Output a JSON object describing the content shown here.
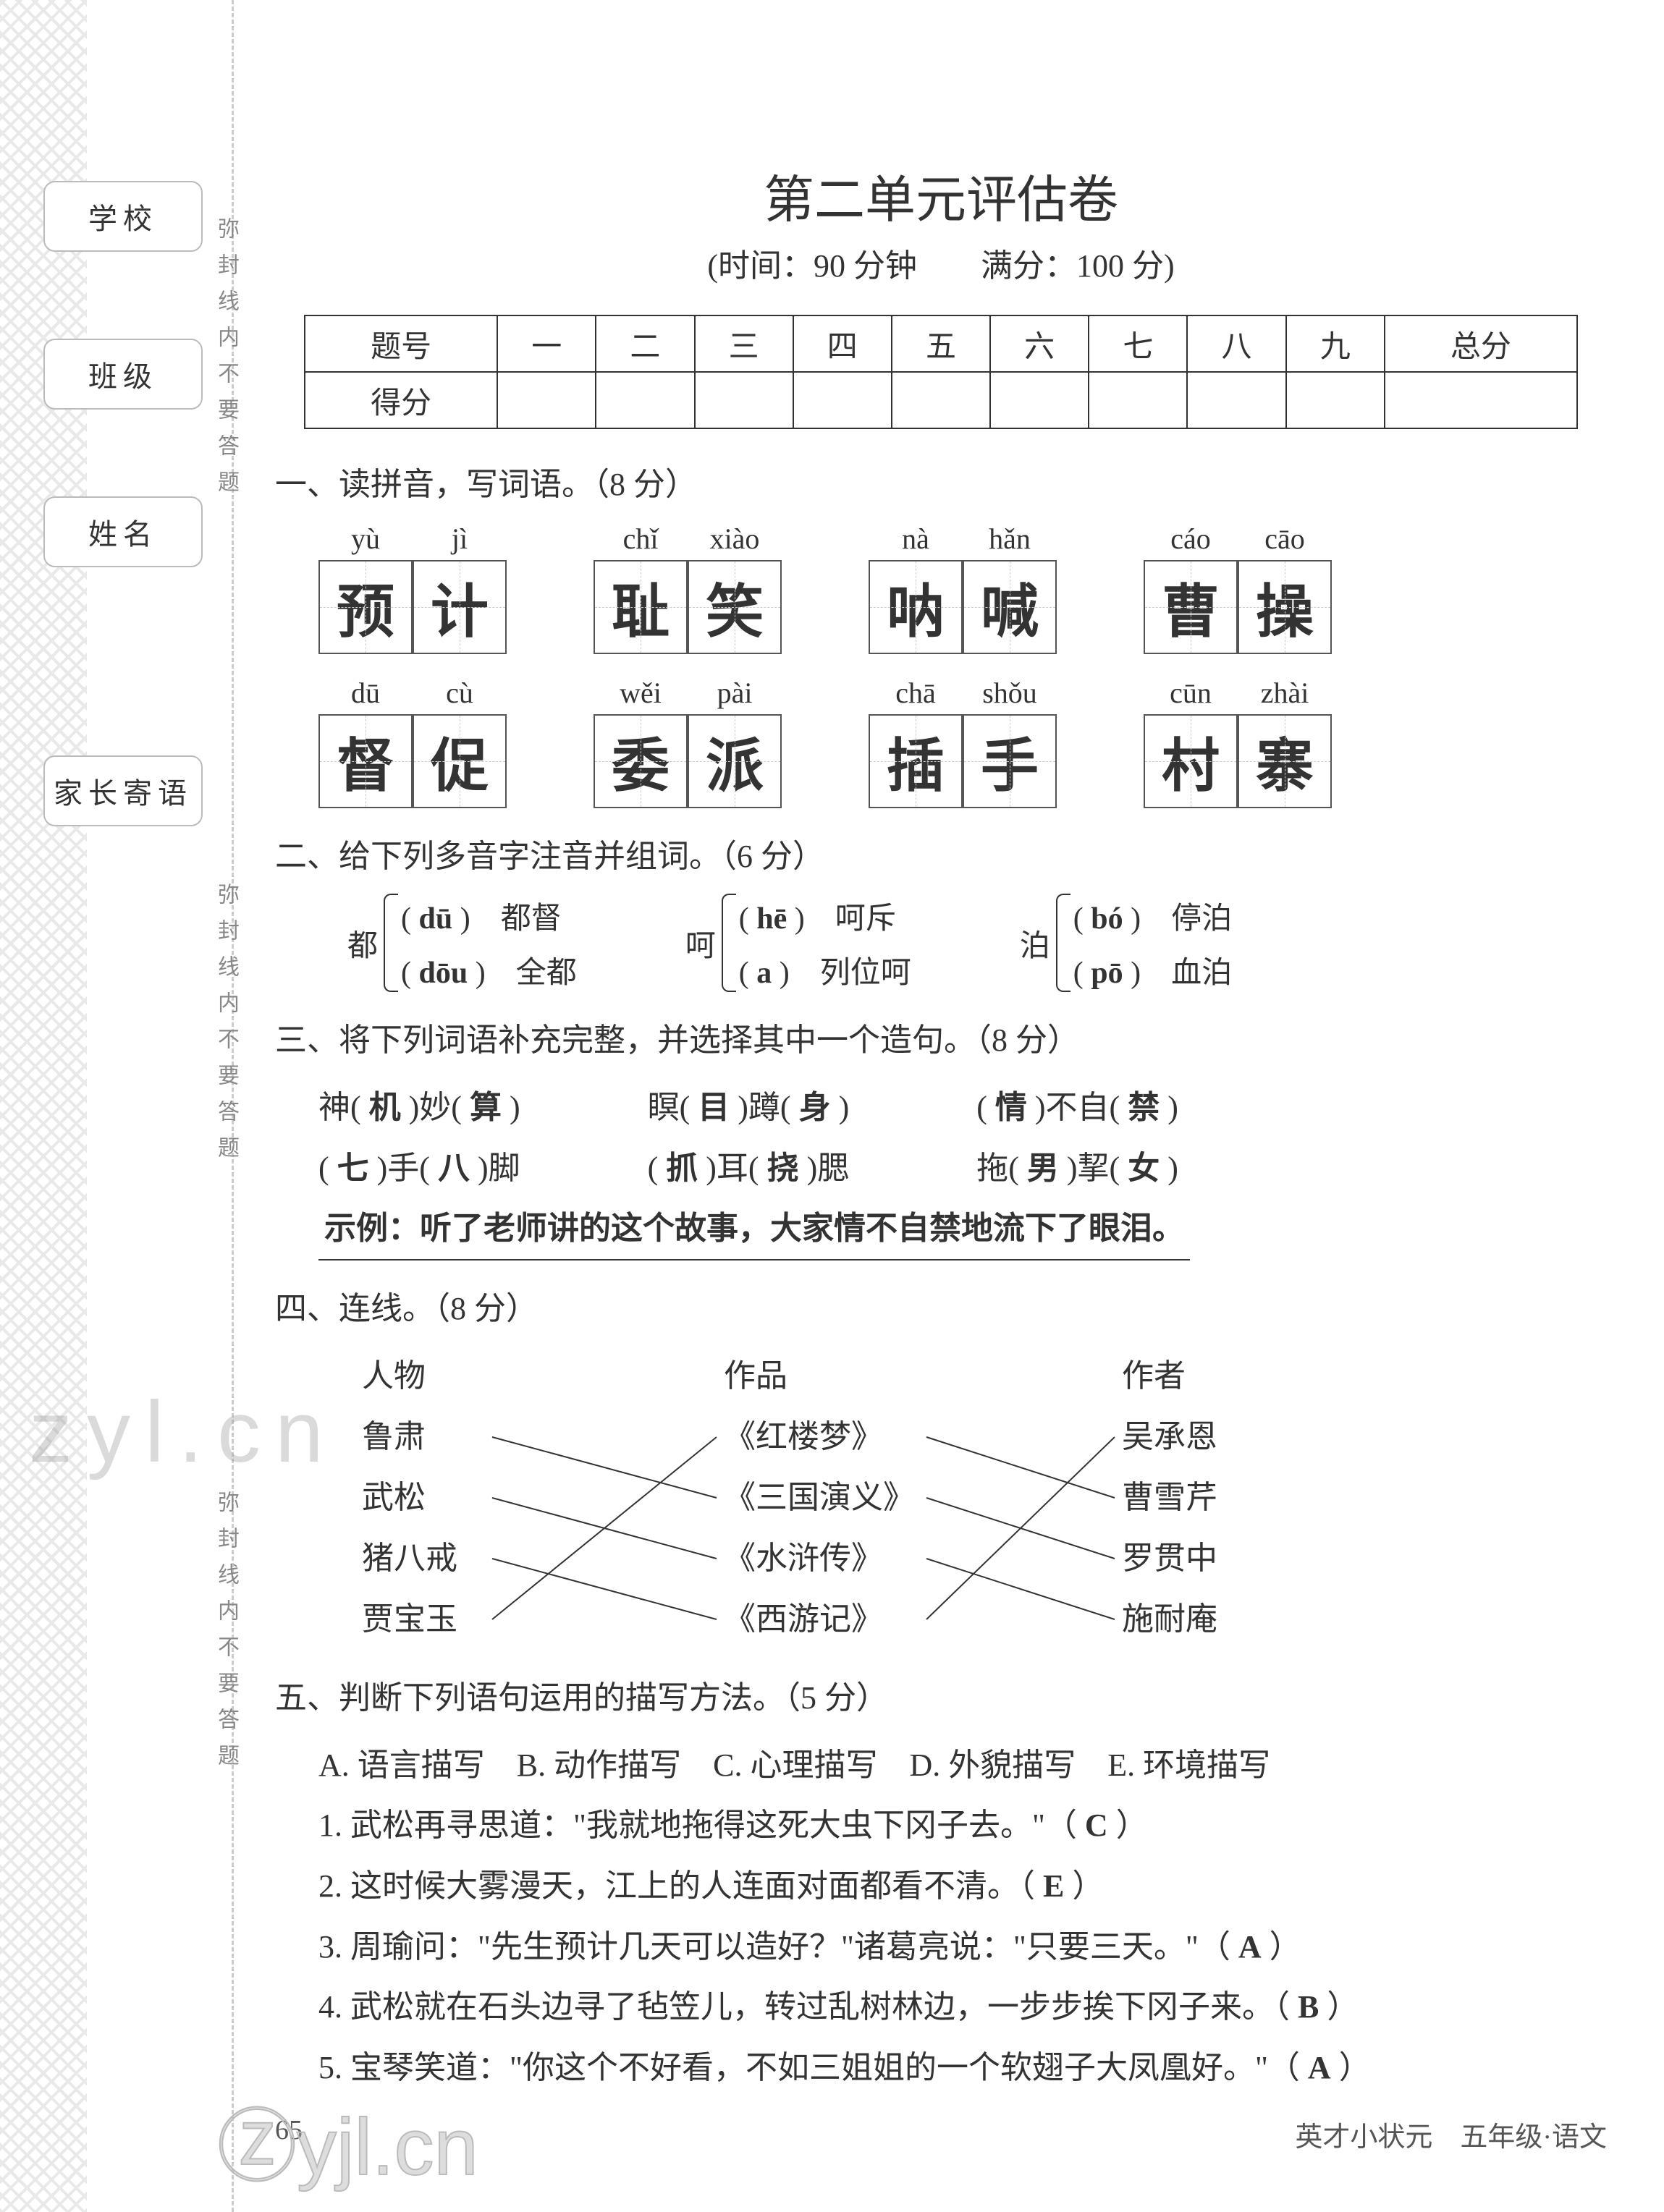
{
  "sidebar": {
    "labels": [
      "学校",
      "班级",
      "姓名",
      "家长寄语"
    ],
    "vnote": "弥封线内不要答题"
  },
  "header": {
    "title": "第二单元评估卷",
    "subtitle": "(时间：90 分钟　　满分：100 分)"
  },
  "score_table": {
    "row1": [
      "题号",
      "一",
      "二",
      "三",
      "四",
      "五",
      "六",
      "七",
      "八",
      "九",
      "总分"
    ],
    "row2_label": "得分"
  },
  "q1": {
    "heading": "一、读拼音，写词语。（8 分）",
    "row1": [
      {
        "py": [
          "yù",
          "jì"
        ],
        "ch": [
          "预",
          "计"
        ]
      },
      {
        "py": [
          "chǐ",
          "xiào"
        ],
        "ch": [
          "耻",
          "笑"
        ]
      },
      {
        "py": [
          "nà",
          "hǎn"
        ],
        "ch": [
          "呐",
          "喊"
        ]
      },
      {
        "py": [
          "cáo",
          "cāo"
        ],
        "ch": [
          "曹",
          "操"
        ]
      }
    ],
    "row2": [
      {
        "py": [
          "dū",
          "cù"
        ],
        "ch": [
          "督",
          "促"
        ]
      },
      {
        "py": [
          "wěi",
          "pài"
        ],
        "ch": [
          "委",
          "派"
        ]
      },
      {
        "py": [
          "chā",
          "shǒu"
        ],
        "ch": [
          "插",
          "手"
        ]
      },
      {
        "py": [
          "cūn",
          "zhài"
        ],
        "ch": [
          "村",
          "寨"
        ]
      }
    ]
  },
  "q2": {
    "heading": "二、给下列多音字注音并组词。（6 分）",
    "groups": [
      {
        "lead": "都",
        "a_py": "dū",
        "a_w": "都督",
        "b_py": "dōu",
        "b_w": "全都"
      },
      {
        "lead": "呵",
        "a_py": "hē",
        "a_w": "呵斥",
        "b_py": "a",
        "b_w": "列位呵"
      },
      {
        "lead": "泊",
        "a_py": "bó",
        "a_w": "停泊",
        "b_py": "pō",
        "b_w": "血泊"
      }
    ]
  },
  "q3": {
    "heading": "三、将下列词语补充完整，并选择其中一个造句。（8 分）",
    "line1": [
      {
        "t": "神( ",
        "a": "机",
        "t2": " )妙( ",
        "a2": "算",
        "t3": " )"
      },
      {
        "t": "瞑( ",
        "a": "目",
        "t2": " )蹲( ",
        "a2": "身",
        "t3": " )"
      },
      {
        "t": "( ",
        "a": "情",
        "t2": " )不自( ",
        "a2": "禁",
        "t3": " )"
      }
    ],
    "line2": [
      {
        "t": "( ",
        "a": "七",
        "t2": " )手( ",
        "a2": "八",
        "t3": " )脚"
      },
      {
        "t": "( ",
        "a": "抓",
        "t2": " )耳( ",
        "a2": "挠",
        "t3": " )腮"
      },
      {
        "t": "拖( ",
        "a": "男",
        "t2": " )挈( ",
        "a2": "女",
        "t3": " )"
      }
    ],
    "sentence": "示例：听了老师讲的这个故事，大家情不自禁地流下了眼泪。"
  },
  "q4": {
    "heading": "四、连线。（8 分）",
    "cols": {
      "h": [
        "人物",
        "作品",
        "作者"
      ],
      "c1": [
        "鲁肃",
        "武松",
        "猪八戒",
        "贾宝玉"
      ],
      "c2": [
        "《红楼梦》",
        "《三国演义》",
        "《水浒传》",
        "《西游记》"
      ],
      "c3": [
        "吴承恩",
        "曹雪芹",
        "罗贯中",
        "施耐庵"
      ]
    },
    "lines1": [
      [
        0,
        1
      ],
      [
        1,
        2
      ],
      [
        2,
        3
      ],
      [
        3,
        0
      ]
    ],
    "lines2": [
      [
        0,
        1
      ],
      [
        1,
        2
      ],
      [
        2,
        3
      ],
      [
        3,
        0
      ]
    ]
  },
  "q5": {
    "heading": "五、判断下列语句运用的描写方法。（5 分）",
    "options": "A. 语言描写　B. 动作描写　C. 心理描写　D. 外貌描写　E. 环境描写",
    "items": [
      {
        "n": "1.",
        "t": "武松再寻思道：\"我就地拖得这死大虫下冈子去。\"（ ",
        "a": "C",
        "t2": " ）"
      },
      {
        "n": "2.",
        "t": "这时候大雾漫天，江上的人连面对面都看不清。（ ",
        "a": "E",
        "t2": " ）"
      },
      {
        "n": "3.",
        "t": "周瑜问：\"先生预计几天可以造好？\"诸葛亮说：\"只要三天。\"（ ",
        "a": "A",
        "t2": " ）"
      },
      {
        "n": "4.",
        "t": "武松就在石头边寻了毡笠儿，转过乱树林边，一步步挨下冈子来。（ ",
        "a": "B",
        "t2": " ）"
      },
      {
        "n": "5.",
        "t": "宝琴笑道：\"你这个不好看，不如三姐姐的一个软翅子大凤凰好。\"（ ",
        "a": "A",
        "t2": " ）"
      }
    ]
  },
  "footer": {
    "page": "65",
    "right": "英才小状元　五年级·语文"
  },
  "watermarks": {
    "w1": "zyl.cn",
    "w2": "Ⓩyjl.cn"
  }
}
